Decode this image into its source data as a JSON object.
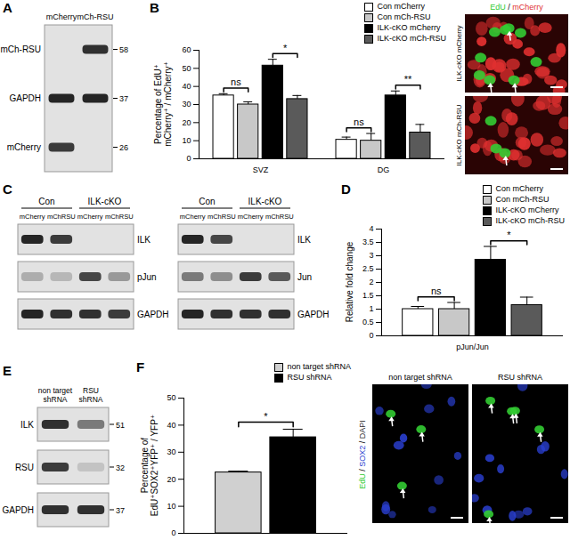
{
  "panel_letters": [
    "A",
    "B",
    "C",
    "D",
    "E",
    "F"
  ],
  "chart_data": [
    {
      "type": "bar",
      "categories": [
        "SVZ",
        "DG"
      ],
      "y_label": "Percentage of EdU⁺ mCherry⁺ / mCherry⁺",
      "ylim": [
        0,
        60
      ],
      "yticks": [
        0,
        10,
        20,
        30,
        40,
        50,
        60
      ],
      "legend": "top-right",
      "series": [
        {
          "name": "Con mCherry",
          "color": "#ffffff",
          "values": [
            35,
            10.5
          ],
          "errors": [
            1,
            1.5
          ]
        },
        {
          "name": "Con mCh-RSU",
          "color": "#c8c8c8",
          "values": [
            30,
            10
          ],
          "errors": [
            1.5,
            4
          ]
        },
        {
          "name": "ILK-cKO mCherry",
          "color": "#000000",
          "values": [
            51.5,
            35
          ],
          "errors": [
            3.5,
            2.5
          ]
        },
        {
          "name": "ILK-cKO mCh-RSU",
          "color": "#5a5a5a",
          "values": [
            33,
            14.5
          ],
          "errors": [
            2,
            4.5
          ]
        }
      ],
      "annotations": [
        {
          "text": "ns",
          "category": "SVZ",
          "series": [
            "Con mCherry",
            "Con mCh-RSU"
          ]
        },
        {
          "text": "*",
          "category": "SVZ",
          "series": [
            "ILK-cKO mCherry",
            "ILK-cKO mCh-RSU"
          ]
        },
        {
          "text": "ns",
          "category": "DG",
          "series": [
            "Con mCherry",
            "Con mCh-RSU"
          ]
        },
        {
          "text": "**",
          "category": "DG",
          "series": [
            "ILK-cKO mCherry",
            "ILK-cKO mCh-RSU"
          ]
        }
      ]
    },
    {
      "type": "bar",
      "categories": [
        "pJun/Jun"
      ],
      "y_label": "Relative fold change",
      "ylim": [
        0,
        4
      ],
      "yticks": [
        0,
        0.5,
        1,
        1.5,
        2,
        2.5,
        3,
        3.5,
        4
      ],
      "legend": "top-right",
      "series": [
        {
          "name": "Con mCherry",
          "color": "#ffffff",
          "values": [
            1.0
          ],
          "errors": [
            0.1
          ]
        },
        {
          "name": "Con mCh-RSU",
          "color": "#c8c8c8",
          "values": [
            1.0
          ],
          "errors": [
            0.25
          ]
        },
        {
          "name": "ILK-cKO mCherry",
          "color": "#000000",
          "values": [
            2.85
          ],
          "errors": [
            0.5
          ]
        },
        {
          "name": "ILK-cKO mCh-RSU",
          "color": "#5a5a5a",
          "values": [
            1.15
          ],
          "errors": [
            0.3
          ]
        }
      ],
      "annotations": [
        {
          "text": "ns",
          "category": "pJun/Jun",
          "series": [
            "Con mCherry",
            "Con mCh-RSU"
          ]
        },
        {
          "text": "*",
          "category": "pJun/Jun",
          "series": [
            "ILK-cKO mCherry",
            "ILK-cKO mCh-RSU"
          ]
        }
      ]
    },
    {
      "type": "bar",
      "categories": [
        null
      ],
      "y_label": "Percentage of EdU⁺SOX2⁺YFP⁺ / YFP⁺",
      "ylim": [
        0,
        50
      ],
      "yticks": [
        0,
        10,
        20,
        30,
        40,
        50
      ],
      "legend": "top-right",
      "series": [
        {
          "name": "non target shRNA",
          "color": "#d0d0d0",
          "values": [
            22.5
          ],
          "errors": [
            0.5
          ]
        },
        {
          "name": "RSU shRNA",
          "color": "#000000",
          "values": [
            35.5
          ],
          "errors": [
            3
          ]
        }
      ],
      "annotations": [
        {
          "text": "*",
          "category": null,
          "series": [
            "non target shRNA",
            "RSU shRNA"
          ]
        }
      ]
    }
  ],
  "blots": [
    {
      "lanes": [
        "mCherry",
        "mCh-RSU"
      ],
      "rows": [
        {
          "label": "mCh-RSU",
          "mw": 58,
          "intensity": [
            0,
            0.85
          ]
        },
        {
          "label": "GAPDH",
          "mw": 37,
          "intensity": [
            0.9,
            0.9
          ]
        },
        {
          "label": "mCherry",
          "mw": 26,
          "intensity": [
            0.8,
            0
          ]
        }
      ]
    },
    {
      "groups": [
        {
          "label": "Con",
          "span": 2
        },
        {
          "label": "ILK-cKO",
          "span": 2
        }
      ],
      "lanes": [
        "mCherry",
        "mChRSU",
        "mCherry",
        "mChRSU"
      ],
      "rows": [
        {
          "label": "ILK",
          "intensity": [
            0.9,
            0.8,
            0,
            0
          ]
        },
        {
          "label": "pJun",
          "intensity": [
            0.25,
            0.2,
            0.75,
            0.35
          ]
        },
        {
          "label": "GAPDH",
          "intensity": [
            0.9,
            0.85,
            0.85,
            0.8
          ]
        }
      ]
    },
    {
      "groups": [
        {
          "label": "Con",
          "span": 2
        },
        {
          "label": "ILK-cKO",
          "span": 2
        }
      ],
      "lanes": [
        "mCherry",
        "mChRSU",
        "mCherry",
        "mChRSU"
      ],
      "rows": [
        {
          "label": "ILK",
          "intensity": [
            0.9,
            0.75,
            0,
            0
          ]
        },
        {
          "label": "Jun",
          "intensity": [
            0.5,
            0.4,
            0.8,
            0.65
          ]
        },
        {
          "label": "GAPDH",
          "intensity": [
            0.9,
            0.85,
            0.85,
            0.85
          ]
        }
      ]
    },
    {
      "lanes": [
        "non target shRNA",
        "RSU shRNA"
      ],
      "rows": [
        {
          "label": "ILK",
          "mw": 51,
          "intensity": [
            0.85,
            0.5
          ]
        },
        {
          "label": "RSU",
          "mw": 32,
          "intensity": [
            0.8,
            0.15
          ]
        },
        {
          "label": "GAPDH",
          "mw": 37,
          "intensity": [
            0.85,
            0.85
          ]
        }
      ]
    }
  ],
  "micrographs": [
    {
      "channels": [
        {
          "name": "EdU",
          "color": "#33cc33"
        },
        {
          "name": "mCherry",
          "color": "#e03030"
        }
      ],
      "separator": " / ",
      "panels": [
        "ILK-cKO mCherry",
        "ILK-cKO mCh-RSU"
      ]
    },
    {
      "channels": [
        {
          "name": "EdU",
          "color": "#33cc33"
        },
        {
          "name": "SOX2",
          "color": "#2a3fd0"
        },
        {
          "name": "DAPI",
          "color": "#333333"
        }
      ],
      "separator": " / ",
      "panels": [
        "non target shRNA",
        "RSU shRNA"
      ]
    }
  ]
}
